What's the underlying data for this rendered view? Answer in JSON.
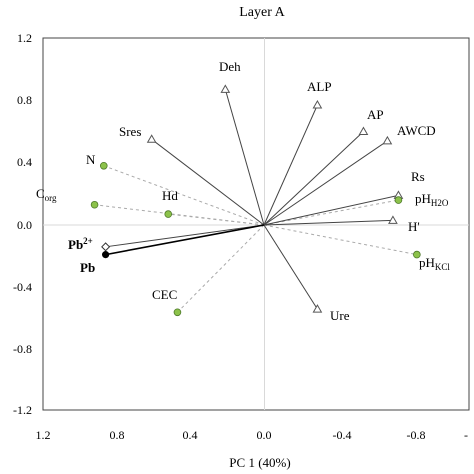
{
  "chart_data": {
    "type": "scatter",
    "title": "Layer A",
    "xlabel": "PC 1 (40%)",
    "ylabel": "",
    "xlim": [
      1.2,
      -1.0
    ],
    "ylim": [
      -1.2,
      1.2
    ],
    "x_ticks": [
      "1.2",
      "0.8",
      "0.4",
      "0.0",
      "-0.4",
      "-0.8",
      "-"
    ],
    "y_ticks": [
      "1.2",
      "0.8",
      "0.4",
      "0.0",
      "-0.4",
      "-0.8",
      "-1.2"
    ],
    "grid": false,
    "vectors": [
      {
        "label": "Deh",
        "x": 0.21,
        "y": 0.87
      },
      {
        "label": "ALP",
        "x": -0.29,
        "y": 0.77
      },
      {
        "label": "AP",
        "x": -0.54,
        "y": 0.6
      },
      {
        "label": "AWCD",
        "x": -0.67,
        "y": 0.54
      },
      {
        "label": "Rs",
        "x": -0.73,
        "y": 0.19
      },
      {
        "label": "H'",
        "x": -0.7,
        "y": 0.03
      },
      {
        "label": "Ure",
        "x": -0.29,
        "y": -0.54
      },
      {
        "label": "Sres",
        "x": 0.61,
        "y": 0.55
      },
      {
        "label": "Pb",
        "x": 0.86,
        "y": -0.14
      }
    ],
    "projected": [
      {
        "label": "N",
        "x": 0.87,
        "y": 0.38
      },
      {
        "label": "Corg",
        "x": 0.92,
        "y": 0.13
      },
      {
        "label": "Hd",
        "x": 0.52,
        "y": 0.07
      },
      {
        "label": "pHH2O",
        "x": -0.73,
        "y": 0.16
      },
      {
        "label": "pHKCl",
        "x": -0.83,
        "y": -0.19
      },
      {
        "label": "CEC",
        "x": 0.47,
        "y": -0.56
      }
    ],
    "supplementary": [
      {
        "label": "Pb",
        "x": 0.86,
        "y": -0.19
      }
    ]
  },
  "labels": {
    "Deh": "Deh",
    "ALP": "ALP",
    "AP": "AP",
    "AWCD": "AWCD",
    "Rs": "Rs",
    "H": "H'",
    "Ure": "Ure",
    "Sres": "Sres",
    "N": "N",
    "Corg_base": "C",
    "Corg_sub": "org",
    "Hd": "Hd",
    "pHH2O_base": "pH",
    "pHH2O_sub": "H2O",
    "pHKCl_base": "pH",
    "pHKCl_sub": "KCl",
    "CEC": "CEC",
    "Pb2_base": "Pb",
    "Pb2_sup": "2+",
    "Pb": "Pb"
  },
  "colors": {
    "green_fill": "#8cc24a",
    "green_stroke": "#4e7a2a",
    "line": "#444444",
    "dashed": "#aaaaaa"
  }
}
